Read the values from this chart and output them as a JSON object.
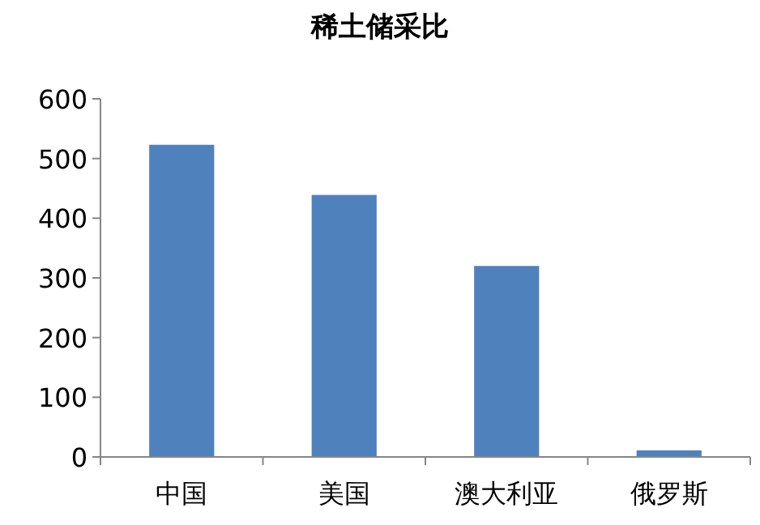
{
  "chart_data": {
    "type": "bar",
    "title": "稀土储采比",
    "categories": [
      "中国",
      "美国",
      "澳大利亚",
      "俄罗斯"
    ],
    "values": [
      523,
      439,
      320,
      11
    ],
    "color": "#4f81bd",
    "ylim": [
      0,
      600
    ],
    "yticks": [
      0,
      100,
      200,
      300,
      400,
      500,
      600
    ],
    "grid": false
  }
}
